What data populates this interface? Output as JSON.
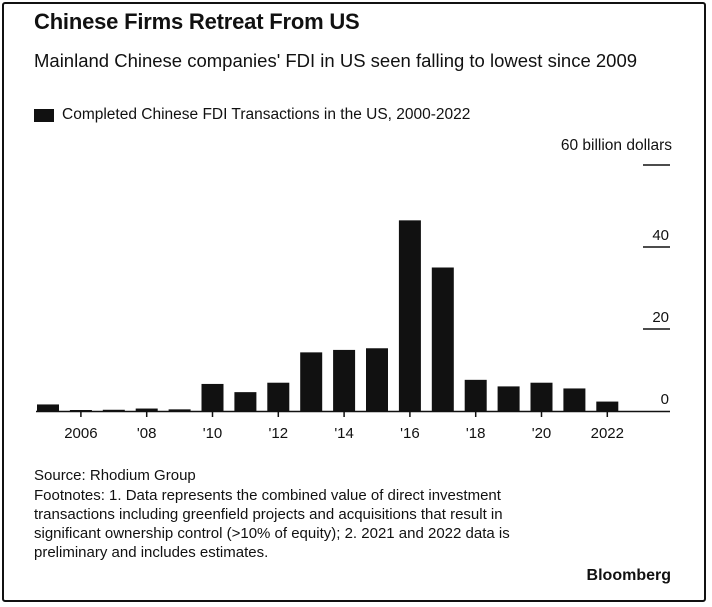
{
  "title": "Chinese Firms Retreat From US",
  "subtitle": "Mainland Chinese companies' FDI in US seen falling to lowest since 2009",
  "source": "Source: Rhodium Group",
  "footnotes": "Footnotes: 1. Data represents the combined value of direct investment transactions including greenfield projects and acquisitions that result in significant ownership control (>10% of equity); 2. 2021 and 2022 data is preliminary and includes estimates.",
  "brand": "Bloomberg",
  "colors": {
    "bar": "#111111",
    "text": "#111111",
    "background": "#ffffff"
  },
  "chart_data": {
    "type": "bar",
    "legend": [
      "Completed Chinese FDI Transactions in the US, 2000-2022"
    ],
    "unit_label": "60 billion dollars",
    "categories": [
      "2005",
      "2006",
      "2007",
      "2008",
      "2009",
      "2010",
      "2011",
      "2012",
      "2013",
      "2014",
      "2015",
      "2016",
      "2017",
      "2018",
      "2019",
      "2020",
      "2021",
      "2022"
    ],
    "values": [
      1.6,
      0.1,
      0.3,
      0.6,
      0.4,
      6.6,
      4.6,
      6.9,
      14.3,
      14.9,
      15.3,
      46.5,
      35.0,
      7.6,
      6.0,
      6.9,
      5.5,
      2.3
    ],
    "x_tick_labels": [
      "2006",
      "'08",
      "'10",
      "'12",
      "'14",
      "'16",
      "'18",
      "'20",
      "2022"
    ],
    "x_tick_years": [
      2006,
      2008,
      2010,
      2012,
      2014,
      2016,
      2018,
      2020,
      2022
    ],
    "y_ticks": [
      0,
      20,
      40,
      60
    ],
    "y_tick_labels": [
      "0",
      "20",
      "40",
      ""
    ],
    "ylim": [
      0,
      60
    ],
    "grid": false,
    "legend_position": "top-left",
    "y_axis_position": "right"
  }
}
